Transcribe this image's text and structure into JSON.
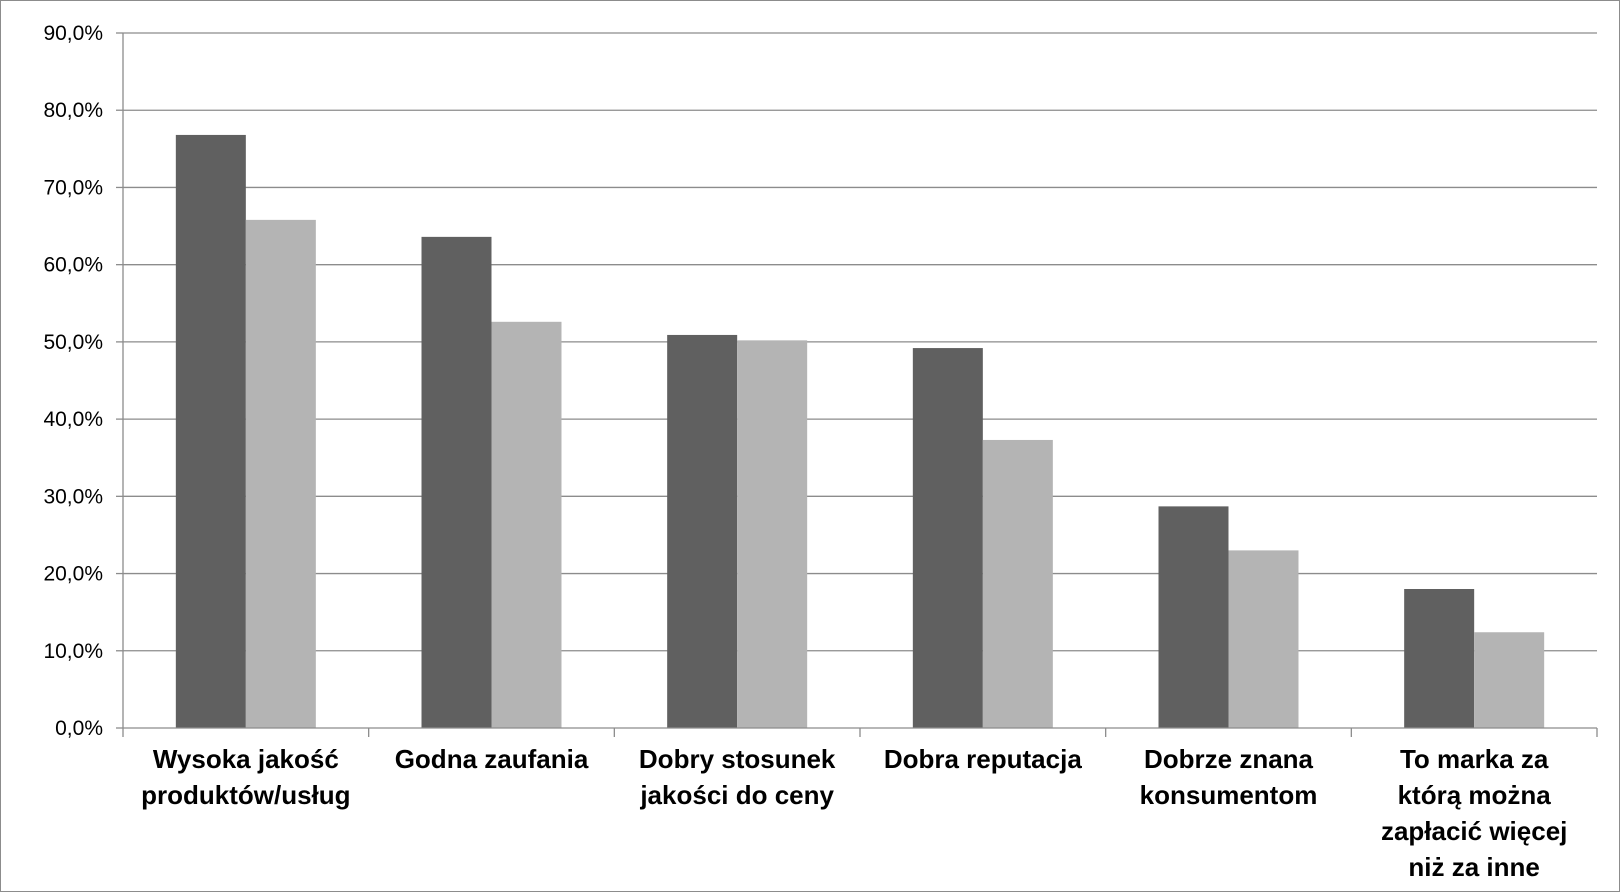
{
  "chart_data": {
    "type": "bar",
    "categories": [
      [
        "Wysoka jakość",
        "produktów/usług"
      ],
      [
        "Godna zaufania"
      ],
      [
        "Dobry stosunek",
        "jakości do ceny"
      ],
      [
        "Dobra reputacja"
      ],
      [
        "Dobrze znana",
        "konsumentom"
      ],
      [
        "To marka za",
        "którą można",
        "zapłacić więcej",
        "niż za inne"
      ]
    ],
    "series": [
      {
        "values": [
          76.8,
          63.6,
          50.9,
          49.2,
          28.7,
          18.0
        ],
        "color": "#606060"
      },
      {
        "values": [
          65.8,
          52.6,
          50.2,
          37.3,
          23.0,
          12.4
        ],
        "color": "#b4b4b4"
      }
    ],
    "y_tick_labels": [
      "0,0%",
      "10,0%",
      "20,0%",
      "30,0%",
      "40,0%",
      "50,0%",
      "60,0%",
      "70,0%",
      "80,0%",
      "90,0%"
    ],
    "ylim": [
      0,
      90
    ],
    "grid": true,
    "gridline_color": "#8c8c8c",
    "title": "",
    "xlabel": "",
    "ylabel": ""
  }
}
